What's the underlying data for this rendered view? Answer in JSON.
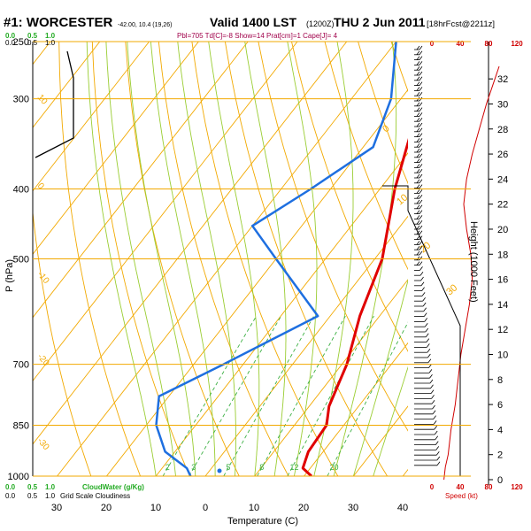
{
  "header": {
    "station": "#1: WORCESTER",
    "coords": "-42.00, 10.4 (19,26)",
    "valid": "Valid 1400 LST",
    "utc": "(1200Z)",
    "date": "THU 2 Jun 2011",
    "fcst": "[18hrFcst@2211z]",
    "indices": "Pbl=705 Td[C]=-8 Show=14 Prat[cm]=1 Cape[J]= 4"
  },
  "colors": {
    "isobar": "#f2a900",
    "isotherm": "#f2a900",
    "dry_adiabat": "#f2a900",
    "moist_adiabat": "#9acd32",
    "mixing_ratio": "#3cb043",
    "temperature": "#e00000",
    "dewpoint": "#1e6fe0",
    "wind_speed": "#d00000",
    "green_label": "#22aa22"
  },
  "chart_data": {
    "type": "line",
    "xlabel": "Temperature (C)",
    "ylabel": "P (hPa)",
    "y2label": "Height (1000 Feet)",
    "xticks": [
      "30",
      "20",
      "10",
      "0",
      "10",
      "20",
      "30",
      "40"
    ],
    "yticks": [
      "250",
      "300",
      "400",
      "500",
      "700",
      "850",
      "1000"
    ],
    "height_ticks": [
      "32",
      "30",
      "28",
      "26",
      "24",
      "22",
      "20",
      "18",
      "16",
      "14",
      "12",
      "10",
      "8",
      "6",
      "4",
      "2",
      "0"
    ],
    "speed_ticks_top": [
      "0",
      "40",
      "80",
      "120"
    ],
    "speed_ticks_bottom": [
      "0",
      "40",
      "80",
      "120"
    ],
    "speed_label": "Speed (kt)",
    "cloud_ticks_top": [
      "0.0",
      "0.5",
      "1.0"
    ],
    "cloud_ticks_top2": [
      "0.0",
      "0.5",
      "1.0"
    ],
    "cloud_ticks_bottom": [
      "0.0",
      "0.5",
      "1.0"
    ],
    "cloud_water_label": "CloudWater (g/Kg)",
    "cloudiness_label": "Grid Scale Cloudiness",
    "mixing_ratio_labels": [
      "2",
      "3",
      "5",
      "8",
      "12",
      "20"
    ],
    "temp_line_labels": [
      "10",
      "0",
      "-10",
      "-20",
      "-30",
      "-40"
    ],
    "theta_labels": [
      "0",
      "10",
      "20",
      "30"
    ],
    "series": [
      {
        "name": "Temperature",
        "points": [
          {
            "p": 1000,
            "t": 21.5
          },
          {
            "p": 975,
            "t": 18.5
          },
          {
            "p": 925,
            "t": 17.0
          },
          {
            "p": 850,
            "t": 16.5
          },
          {
            "p": 800,
            "t": 14.0
          },
          {
            "p": 700,
            "t": 11.0
          },
          {
            "p": 600,
            "t": 6.0
          },
          {
            "p": 500,
            "t": 1.5
          },
          {
            "p": 400,
            "t": -7.0
          },
          {
            "p": 300,
            "t": -16.0
          },
          {
            "p": 250,
            "t": -21.0
          }
        ]
      },
      {
        "name": "Dewpoint",
        "points": [
          {
            "p": 1000,
            "t": -3.0
          },
          {
            "p": 975,
            "t": -5.0
          },
          {
            "p": 925,
            "t": -12.0
          },
          {
            "p": 850,
            "t": -18.0
          },
          {
            "p": 775,
            "t": -22.0
          },
          {
            "p": 700,
            "t": -14.0
          },
          {
            "p": 600,
            "t": -2.5
          },
          {
            "p": 500,
            "t": -20.0
          },
          {
            "p": 450,
            "t": -30.0
          },
          {
            "p": 400,
            "t": -24.0
          },
          {
            "p": 350,
            "t": -18.0
          },
          {
            "p": 300,
            "t": -22.0
          },
          {
            "p": 250,
            "t": -30.0
          }
        ]
      }
    ],
    "wind_speed_kt": [
      {
        "h": 0,
        "v": 2
      },
      {
        "h": 1,
        "v": 4
      },
      {
        "h": 2,
        "v": 8
      },
      {
        "h": 4,
        "v": 12
      },
      {
        "h": 6,
        "v": 18
      },
      {
        "h": 8,
        "v": 22
      },
      {
        "h": 10,
        "v": 26
      },
      {
        "h": 12,
        "v": 32
      },
      {
        "h": 14,
        "v": 38
      },
      {
        "h": 16,
        "v": 42
      },
      {
        "h": 18,
        "v": 40
      },
      {
        "h": 20,
        "v": 34
      },
      {
        "h": 22,
        "v": 30
      },
      {
        "h": 24,
        "v": 34
      },
      {
        "h": 26,
        "v": 42
      },
      {
        "h": 28,
        "v": 52
      },
      {
        "h": 30,
        "v": 62
      },
      {
        "h": 32,
        "v": 74
      },
      {
        "h": 33,
        "v": 80
      }
    ]
  }
}
